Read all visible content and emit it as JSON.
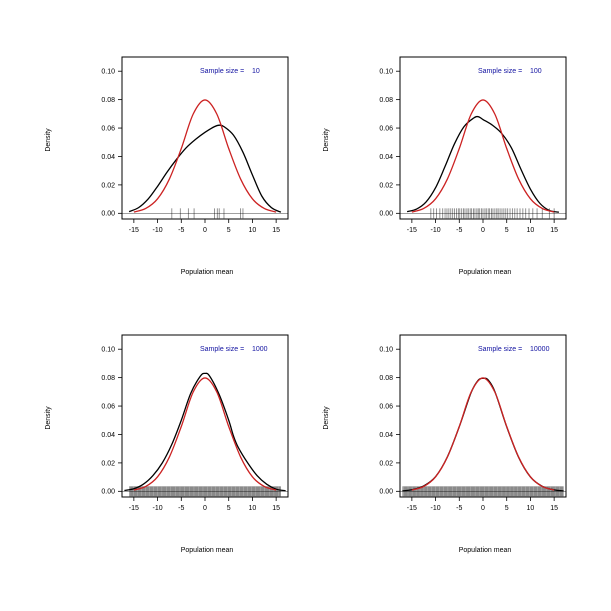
{
  "chart_data": [
    {
      "type": "line",
      "xlabel": "Population mean",
      "ylabel": "Density",
      "annotation_label": "Sample size =",
      "annotation_value": "10",
      "annotation_color": "#1010a0",
      "xlim": [
        -17.5,
        17.5
      ],
      "ylim": [
        -0.004,
        0.11
      ],
      "xticks": [
        -15,
        -10,
        -5,
        0,
        5,
        10,
        15
      ],
      "yticks": [
        "0.00",
        "0.02",
        "0.04",
        "0.06",
        "0.08",
        "0.10"
      ],
      "series": [
        {
          "color": "#000000",
          "x": [
            -16,
            -14,
            -12,
            -10,
            -8,
            -6,
            -4,
            -2,
            0,
            2,
            3,
            4,
            6,
            8,
            10,
            12,
            14,
            16
          ],
          "y": [
            0.0012,
            0.004,
            0.01,
            0.019,
            0.029,
            0.038,
            0.046,
            0.052,
            0.057,
            0.061,
            0.062,
            0.061,
            0.055,
            0.043,
            0.027,
            0.012,
            0.004,
            0.0008
          ]
        },
        {
          "color": "#cc2222",
          "x": [
            -15,
            -12.5,
            -10,
            -7.5,
            -5,
            -2.5,
            0,
            2.5,
            5,
            7.5,
            10,
            12.5,
            15
          ],
          "y": [
            0.0009,
            0.0034,
            0.0102,
            0.0242,
            0.0456,
            0.0698,
            0.0798,
            0.0698,
            0.0456,
            0.0242,
            0.0102,
            0.0034,
            0.0009
          ]
        }
      ],
      "rug": [
        -7,
        -5.2,
        -3.5,
        -2.3,
        2,
        2.6,
        3,
        4,
        7.5,
        8
      ]
    },
    {
      "type": "line",
      "xlabel": "Population mean",
      "ylabel": "Density",
      "annotation_label": "Sample size =",
      "annotation_value": "100",
      "annotation_color": "#1010a0",
      "xlim": [
        -17.5,
        17.5
      ],
      "ylim": [
        -0.004,
        0.11
      ],
      "xticks": [
        -15,
        -10,
        -5,
        0,
        5,
        10,
        15
      ],
      "yticks": [
        "0.00",
        "0.02",
        "0.04",
        "0.06",
        "0.08",
        "0.10"
      ],
      "series": [
        {
          "color": "#000000",
          "x": [
            -16,
            -14,
            -12,
            -10,
            -8,
            -6,
            -4,
            -2,
            -1,
            0,
            2,
            4,
            6,
            8,
            10,
            12,
            14,
            16
          ],
          "y": [
            0.0012,
            0.003,
            0.008,
            0.018,
            0.033,
            0.049,
            0.061,
            0.067,
            0.068,
            0.066,
            0.062,
            0.056,
            0.046,
            0.031,
            0.017,
            0.007,
            0.002,
            0.0008
          ]
        },
        {
          "color": "#cc2222",
          "x": [
            -15,
            -12.5,
            -10,
            -7.5,
            -5,
            -2.5,
            0,
            2.5,
            5,
            7.5,
            10,
            12.5,
            15
          ],
          "y": [
            0.0009,
            0.0034,
            0.0102,
            0.0242,
            0.0456,
            0.0698,
            0.0798,
            0.0698,
            0.0456,
            0.0242,
            0.0102,
            0.0034,
            0.0009
          ]
        }
      ],
      "rug": [
        -11,
        -10.4,
        -9.8,
        -9.1,
        -8.5,
        -8,
        -7.6,
        -7.2,
        -6.8,
        -6.4,
        -6,
        -5.6,
        -5.2,
        -4.9,
        -4.5,
        -4.1,
        -3.8,
        -3.4,
        -3.1,
        -2.7,
        -2.4,
        -2,
        -1.7,
        -1.3,
        -1,
        -0.7,
        -0.3,
        0,
        0.4,
        0.7,
        1.1,
        1.4,
        1.8,
        2.1,
        2.5,
        2.9,
        3.2,
        3.6,
        4,
        4.4,
        4.8,
        5.2,
        5.7,
        6.2,
        6.7,
        7.2,
        7.8,
        8.4,
        9,
        9.7,
        10.5,
        11.4,
        12.5,
        14,
        15
      ]
    },
    {
      "type": "line",
      "xlabel": "Population mean",
      "ylabel": "Density",
      "annotation_label": "Sample size =",
      "annotation_value": "1000",
      "annotation_color": "#1010a0",
      "xlim": [
        -17.5,
        17.5
      ],
      "ylim": [
        -0.004,
        0.11
      ],
      "xticks": [
        -15,
        -10,
        -5,
        0,
        5,
        10,
        15
      ],
      "yticks": [
        "0.00",
        "0.02",
        "0.04",
        "0.06",
        "0.08",
        "0.10"
      ],
      "series": [
        {
          "color": "#000000",
          "x": [
            -17,
            -15,
            -13,
            -11,
            -9,
            -7,
            -5,
            -3,
            -1,
            0,
            1,
            3,
            5,
            6,
            7,
            9,
            11,
            13,
            15,
            17
          ],
          "y": [
            0.0006,
            0.0018,
            0.005,
            0.011,
            0.02,
            0.033,
            0.05,
            0.069,
            0.081,
            0.083,
            0.081,
            0.068,
            0.05,
            0.039,
            0.031,
            0.02,
            0.011,
            0.005,
            0.0015,
            0.0004
          ]
        },
        {
          "color": "#cc2222",
          "x": [
            -15,
            -12.5,
            -10,
            -7.5,
            -5,
            -2.5,
            0,
            2.5,
            5,
            7.5,
            10,
            12.5,
            15
          ],
          "y": [
            0.0009,
            0.0034,
            0.0102,
            0.0242,
            0.0456,
            0.0698,
            0.0798,
            0.0698,
            0.0456,
            0.0242,
            0.0102,
            0.0034,
            0.0009
          ]
        }
      ],
      "rug_range": [
        -16,
        16
      ]
    },
    {
      "type": "line",
      "xlabel": "Population mean",
      "ylabel": "Density",
      "annotation_label": "Sample size =",
      "annotation_value": "10000",
      "annotation_color": "#1010a0",
      "xlim": [
        -17.5,
        17.5
      ],
      "ylim": [
        -0.004,
        0.11
      ],
      "xticks": [
        -15,
        -10,
        -5,
        0,
        5,
        10,
        15
      ],
      "yticks": [
        "0.00",
        "0.02",
        "0.04",
        "0.06",
        "0.08",
        "0.10"
      ],
      "series": [
        {
          "color": "#000000",
          "x": [
            -17,
            -15,
            -12.5,
            -10,
            -7.5,
            -5,
            -2.5,
            -1,
            0,
            1,
            2.5,
            5,
            7.5,
            10,
            12.5,
            15,
            17
          ],
          "y": [
            0.0003,
            0.0011,
            0.0038,
            0.0103,
            0.0243,
            0.0455,
            0.0695,
            0.0782,
            0.0795,
            0.0787,
            0.0702,
            0.0454,
            0.024,
            0.0101,
            0.0035,
            0.001,
            0.0003
          ]
        },
        {
          "color": "#cc2222",
          "x": [
            -15,
            -12.5,
            -10,
            -7.5,
            -5,
            -2.5,
            0,
            2.5,
            5,
            7.5,
            10,
            12.5,
            15
          ],
          "y": [
            0.0009,
            0.0034,
            0.0102,
            0.0242,
            0.0456,
            0.0698,
            0.0798,
            0.0698,
            0.0456,
            0.0242,
            0.0102,
            0.0034,
            0.0009
          ]
        }
      ],
      "rug_range": [
        -17,
        17
      ]
    }
  ]
}
